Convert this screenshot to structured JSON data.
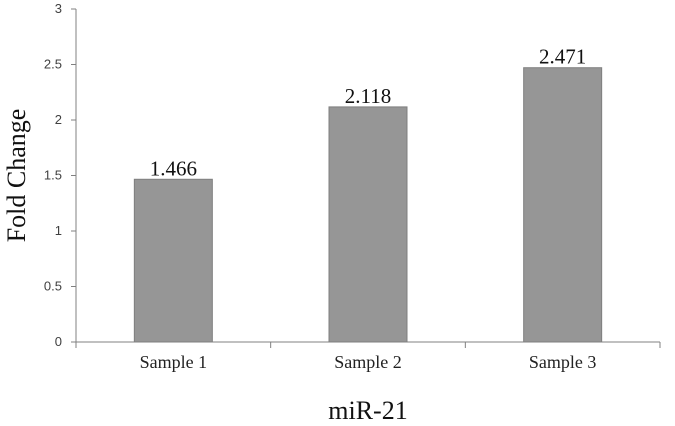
{
  "chart_data": {
    "type": "bar",
    "categories": [
      "Sample 1",
      "Sample 2",
      "Sample 3"
    ],
    "values": [
      1.466,
      2.118,
      2.471
    ],
    "data_labels": [
      "1.466",
      "2.118",
      "2.471"
    ],
    "xlabel": "miR-21",
    "ylabel": "Fold Change",
    "ylim": [
      0,
      3
    ],
    "yticks": [
      "0",
      "0.5",
      "1",
      "1.5",
      "2",
      "2.5",
      "3"
    ],
    "grid": false,
    "legend": "none",
    "bar_color": "#969696",
    "bar_edge_color": "#7f7f7f"
  }
}
